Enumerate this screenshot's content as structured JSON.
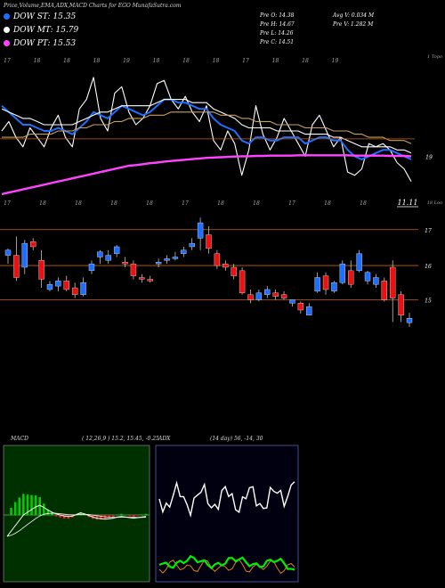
{
  "header": {
    "title": "Price,Volume,EMA,ADX,MACD Charts for EGO MunafaSutra.com"
  },
  "legend": [
    {
      "label": "DOW ST: 15.35",
      "color": "#1e6fff"
    },
    {
      "label": "DOW MT: 15.79",
      "color": "#ffffff"
    },
    {
      "label": "DOW PT: 15.53",
      "color": "#ff44ff"
    }
  ],
  "info_left": [
    "Pre O: 14.38",
    "Pre H: 14.67",
    "Pre L: 14.26",
    "Pre C: 14.51"
  ],
  "info_right": [
    "Avg V: 0.034 M",
    "Pre V: 1.282 M"
  ],
  "macd_header": {
    "label": "MACD",
    "params": "( 12,26,9 ) 15.2, 15.45, -0.25"
  },
  "adx_header": {
    "label": "ADX",
    "params": "(14 day) 56, -14, 30"
  },
  "chart_data": [
    {
      "type": "line",
      "title": "EMA averages",
      "y_tick_labels": [
        "19"
      ],
      "annotations": [
        "11.11",
        "1 Topo",
        "18 Loo"
      ],
      "top_date_labels": [
        "17",
        "18",
        "18",
        "18",
        "19",
        "18",
        "18",
        "18",
        "17",
        "18",
        "18",
        "19"
      ],
      "bottom_date_labels": [
        "17",
        "18",
        "18",
        "18",
        "18",
        "17",
        "18",
        "18",
        "17",
        "18",
        "18"
      ],
      "series": [
        {
          "name": "price",
          "color": "#ffffff",
          "values": [
            19.8,
            20.1,
            19.6,
            19.3,
            19.9,
            19.6,
            19.3,
            19.9,
            20.3,
            19.6,
            19.3,
            20.5,
            20.8,
            21.5,
            20.2,
            19.8,
            21.0,
            21.2,
            20.4,
            20.0,
            20.2,
            20.6,
            21.3,
            21.4,
            20.8,
            20.5,
            20.9,
            20.4,
            20.1,
            20.6,
            19.5,
            19.2,
            19.8,
            19.4,
            18.4,
            19.2,
            20.6,
            19.7,
            19.2,
            19.6,
            20.2,
            19.8,
            19.4,
            19.0,
            20.0,
            20.3,
            19.8,
            19.3,
            19.6,
            18.5,
            18.4,
            18.6,
            19.4,
            19.3,
            19.4,
            19.2,
            18.8,
            18.6,
            18.2
          ]
        },
        {
          "name": "ema-st",
          "color": "#1e6fff",
          "values": [
            20.6,
            20.4,
            20.2,
            20.0,
            20.0,
            19.9,
            19.8,
            19.8,
            19.9,
            19.8,
            19.7,
            19.9,
            20.1,
            20.4,
            20.3,
            20.2,
            20.4,
            20.6,
            20.5,
            20.4,
            20.3,
            20.4,
            20.6,
            20.8,
            20.8,
            20.7,
            20.7,
            20.6,
            20.5,
            20.5,
            20.2,
            20.0,
            19.9,
            19.8,
            19.5,
            19.4,
            19.6,
            19.6,
            19.5,
            19.5,
            19.6,
            19.6,
            19.6,
            19.4,
            19.5,
            19.6,
            19.6,
            19.5,
            19.5,
            19.2,
            19.0,
            18.9,
            19.0,
            19.1,
            19.2,
            19.2,
            19.1,
            19.0,
            18.9
          ]
        },
        {
          "name": "ema-mt",
          "color": "#ffffff",
          "values": [
            20.5,
            20.4,
            20.3,
            20.2,
            20.2,
            20.1,
            20.0,
            20.0,
            20.0,
            20.0,
            20.0,
            20.1,
            20.2,
            20.3,
            20.4,
            20.4,
            20.5,
            20.6,
            20.6,
            20.6,
            20.6,
            20.6,
            20.7,
            20.8,
            20.8,
            20.8,
            20.8,
            20.7,
            20.7,
            20.7,
            20.5,
            20.4,
            20.3,
            20.2,
            20.0,
            19.9,
            19.9,
            19.9,
            19.9,
            19.8,
            19.8,
            19.8,
            19.8,
            19.7,
            19.7,
            19.7,
            19.7,
            19.6,
            19.6,
            19.5,
            19.4,
            19.3,
            19.3,
            19.3,
            19.3,
            19.3,
            19.2,
            19.2,
            19.1
          ]
        },
        {
          "name": "ema-lt",
          "color": "#c8a060",
          "values": [
            19.6,
            19.6,
            19.6,
            19.6,
            19.7,
            19.7,
            19.7,
            19.7,
            19.8,
            19.8,
            19.8,
            19.9,
            19.9,
            20.0,
            20.0,
            20.0,
            20.1,
            20.1,
            20.2,
            20.2,
            20.2,
            20.3,
            20.3,
            20.3,
            20.4,
            20.4,
            20.4,
            20.4,
            20.4,
            20.4,
            20.4,
            20.3,
            20.3,
            20.3,
            20.2,
            20.2,
            20.1,
            20.1,
            20.1,
            20.0,
            20.0,
            20.0,
            20.0,
            19.9,
            19.9,
            19.9,
            19.9,
            19.8,
            19.8,
            19.8,
            19.7,
            19.7,
            19.6,
            19.6,
            19.6,
            19.5,
            19.5,
            19.5,
            19.4
          ]
        },
        {
          "name": "ema-pt",
          "color": "#ff44ff",
          "values": [
            17.8,
            17.85,
            17.9,
            17.95,
            18.0,
            18.05,
            18.1,
            18.15,
            18.2,
            18.25,
            18.3,
            18.35,
            18.4,
            18.45,
            18.5,
            18.55,
            18.6,
            18.65,
            18.7,
            18.72,
            18.75,
            18.78,
            18.8,
            18.83,
            18.85,
            18.87,
            18.89,
            18.91,
            18.93,
            18.95,
            18.96,
            18.97,
            18.98,
            18.99,
            19.0,
            19.0,
            19.01,
            19.01,
            19.02,
            19.02,
            19.02,
            19.02,
            19.03,
            19.03,
            19.03,
            19.03,
            19.03,
            19.03,
            19.03,
            19.03,
            19.02,
            19.02,
            19.02,
            19.02,
            19.02,
            19.01,
            19.01,
            19.01,
            19.0
          ]
        }
      ]
    },
    {
      "type": "bar",
      "subtype": "candlestick",
      "y_tick_labels": [
        "17",
        "16",
        "15"
      ],
      "levels": [
        17.1,
        16.05,
        15.05
      ],
      "candles": [
        {
          "o": 16.35,
          "h": 16.55,
          "l": 16.1,
          "c": 16.5
        },
        {
          "o": 16.35,
          "h": 16.9,
          "l": 15.6,
          "c": 15.7
        },
        {
          "o": 16.0,
          "h": 16.8,
          "l": 15.8,
          "c": 16.7
        },
        {
          "o": 16.75,
          "h": 16.85,
          "l": 16.5,
          "c": 16.6
        },
        {
          "o": 16.2,
          "h": 16.5,
          "l": 15.4,
          "c": 15.65
        },
        {
          "o": 15.35,
          "h": 15.6,
          "l": 15.3,
          "c": 15.5
        },
        {
          "o": 15.45,
          "h": 15.7,
          "l": 15.3,
          "c": 15.6
        },
        {
          "o": 15.6,
          "h": 15.75,
          "l": 15.3,
          "c": 15.35
        },
        {
          "o": 15.4,
          "h": 15.55,
          "l": 15.1,
          "c": 15.2
        },
        {
          "o": 15.2,
          "h": 15.7,
          "l": 15.15,
          "c": 15.55
        },
        {
          "o": 15.9,
          "h": 16.2,
          "l": 15.8,
          "c": 16.1
        },
        {
          "o": 16.3,
          "h": 16.5,
          "l": 16.1,
          "c": 16.45
        },
        {
          "o": 16.2,
          "h": 16.5,
          "l": 16.1,
          "c": 16.35
        },
        {
          "o": 16.4,
          "h": 16.65,
          "l": 16.3,
          "c": 16.6
        },
        {
          "o": 16.15,
          "h": 16.3,
          "l": 16.0,
          "c": 16.1
        },
        {
          "o": 16.1,
          "h": 16.2,
          "l": 15.65,
          "c": 15.75
        },
        {
          "o": 15.7,
          "h": 15.8,
          "l": 15.55,
          "c": 15.65
        },
        {
          "o": 15.65,
          "h": 15.75,
          "l": 15.55,
          "c": 15.6
        },
        {
          "o": 16.1,
          "h": 16.25,
          "l": 16.0,
          "c": 16.15
        },
        {
          "o": 16.2,
          "h": 16.35,
          "l": 16.1,
          "c": 16.25
        },
        {
          "o": 16.25,
          "h": 16.45,
          "l": 16.2,
          "c": 16.3
        },
        {
          "o": 16.4,
          "h": 16.6,
          "l": 16.3,
          "c": 16.5
        },
        {
          "o": 16.6,
          "h": 16.85,
          "l": 16.5,
          "c": 16.7
        },
        {
          "o": 16.85,
          "h": 17.45,
          "l": 16.5,
          "c": 17.3
        },
        {
          "o": 16.95,
          "h": 17.2,
          "l": 16.4,
          "c": 16.55
        },
        {
          "o": 16.4,
          "h": 16.5,
          "l": 15.95,
          "c": 16.05
        },
        {
          "o": 16.1,
          "h": 16.2,
          "l": 15.9,
          "c": 16.0
        },
        {
          "o": 16.0,
          "h": 16.1,
          "l": 15.65,
          "c": 15.75
        },
        {
          "o": 15.9,
          "h": 16.0,
          "l": 15.2,
          "c": 15.25
        },
        {
          "o": 15.2,
          "h": 15.35,
          "l": 14.95,
          "c": 15.05
        },
        {
          "o": 15.05,
          "h": 15.35,
          "l": 15.0,
          "c": 15.25
        },
        {
          "o": 15.2,
          "h": 15.45,
          "l": 15.1,
          "c": 15.35
        },
        {
          "o": 15.25,
          "h": 15.35,
          "l": 15.05,
          "c": 15.15
        },
        {
          "o": 15.2,
          "h": 15.3,
          "l": 15.05,
          "c": 15.1
        },
        {
          "o": 14.95,
          "h": 15.05,
          "l": 14.85,
          "c": 15.05
        },
        {
          "o": 14.95,
          "h": 15.0,
          "l": 14.65,
          "c": 14.75
        },
        {
          "o": 14.6,
          "h": 14.95,
          "l": 14.6,
          "c": 14.85
        },
        {
          "o": 15.3,
          "h": 15.85,
          "l": 15.25,
          "c": 15.7
        },
        {
          "o": 15.75,
          "h": 15.85,
          "l": 15.2,
          "c": 15.35
        },
        {
          "o": 15.3,
          "h": 15.6,
          "l": 15.25,
          "c": 15.55
        },
        {
          "o": 15.55,
          "h": 16.2,
          "l": 15.5,
          "c": 16.1
        },
        {
          "o": 15.9,
          "h": 16.2,
          "l": 15.4,
          "c": 15.5
        },
        {
          "o": 15.9,
          "h": 16.5,
          "l": 15.85,
          "c": 16.4
        },
        {
          "o": 15.6,
          "h": 15.9,
          "l": 15.5,
          "c": 15.85
        },
        {
          "o": 15.5,
          "h": 15.8,
          "l": 15.4,
          "c": 15.7
        },
        {
          "o": 15.6,
          "h": 15.7,
          "l": 15.0,
          "c": 15.05
        },
        {
          "o": 16.0,
          "h": 16.2,
          "l": 14.4,
          "c": 15.1
        },
        {
          "o": 15.2,
          "h": 15.3,
          "l": 14.4,
          "c": 14.6
        },
        {
          "o": 14.38,
          "h": 14.67,
          "l": 14.26,
          "c": 14.51
        }
      ]
    },
    {
      "type": "line",
      "title": "MACD",
      "series": [
        {
          "name": "macd",
          "color": "#ffffff"
        },
        {
          "name": "signal",
          "color": "#ffffff"
        },
        {
          "name": "histogram",
          "color": "#00cc00"
        }
      ]
    },
    {
      "type": "line",
      "title": "ADX",
      "series": [
        {
          "name": "adx",
          "color": "#ffffff"
        },
        {
          "name": "plus-di",
          "color": "#00ee00"
        },
        {
          "name": "minus-di",
          "color": "#e08020"
        }
      ]
    }
  ]
}
